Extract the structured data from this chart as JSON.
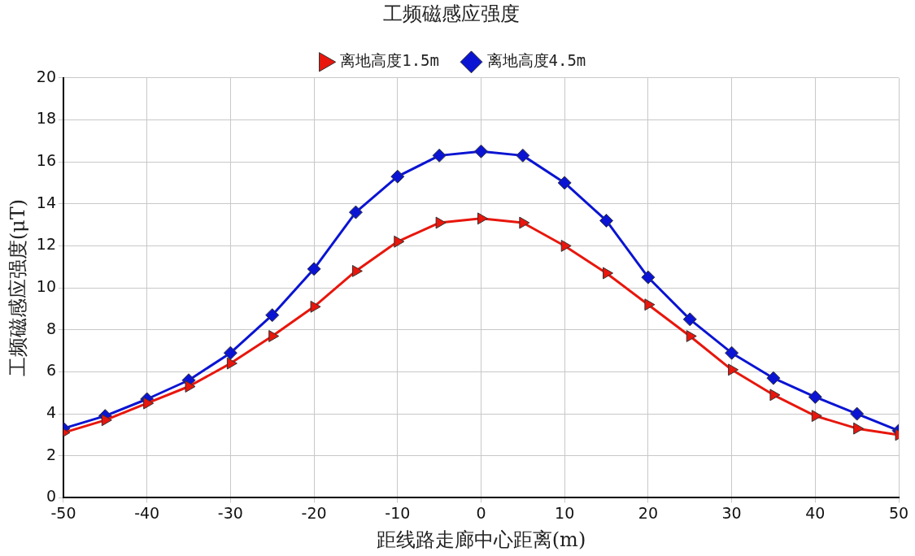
{
  "chart_data": {
    "type": "line",
    "title": "工频磁感应强度",
    "xlabel": "距线路走廊中心距离(m)",
    "ylabel": "工频磁感应强度(μT)",
    "x": [
      -50,
      -45,
      -40,
      -35,
      -30,
      -25,
      -20,
      -15,
      -10,
      -5,
      0,
      5,
      10,
      15,
      20,
      25,
      30,
      35,
      40,
      45,
      50
    ],
    "series": [
      {
        "name": "离地高度1.5m",
        "color": "#e8160c",
        "marker": "triangle",
        "values": [
          3.1,
          3.7,
          4.5,
          5.3,
          6.4,
          7.7,
          9.1,
          10.8,
          12.2,
          13.1,
          13.3,
          13.1,
          12.0,
          10.7,
          9.2,
          7.7,
          6.1,
          4.9,
          3.9,
          3.3,
          3.0
        ]
      },
      {
        "name": "离地高度4.5m",
        "color": "#0a14d2",
        "marker": "diamond",
        "values": [
          3.3,
          3.9,
          4.7,
          5.6,
          6.9,
          8.7,
          10.9,
          13.6,
          15.3,
          16.3,
          16.5,
          16.3,
          15.0,
          13.2,
          10.5,
          8.5,
          6.9,
          5.7,
          4.8,
          4.0,
          3.2
        ]
      }
    ],
    "xlim": [
      -50,
      50
    ],
    "xticks": [
      -50,
      -40,
      -30,
      -20,
      -10,
      0,
      10,
      20,
      30,
      40,
      50
    ],
    "ylim": [
      0,
      20
    ],
    "yticks": [
      0,
      2,
      4,
      6,
      8,
      10,
      12,
      14,
      16,
      18,
      20
    ],
    "grid": true,
    "legend": "top"
  }
}
